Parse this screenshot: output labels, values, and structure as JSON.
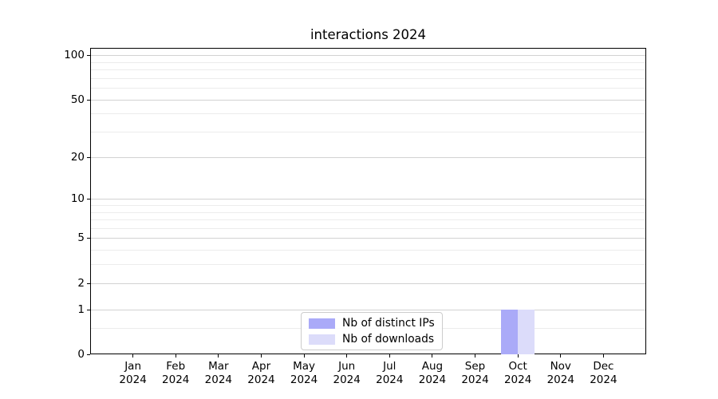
{
  "chart_data": {
    "type": "bar",
    "title": "interactions 2024",
    "x_ticks": [
      {
        "month": "Jan",
        "year": "2024"
      },
      {
        "month": "Feb",
        "year": "2024"
      },
      {
        "month": "Mar",
        "year": "2024"
      },
      {
        "month": "Apr",
        "year": "2024"
      },
      {
        "month": "May",
        "year": "2024"
      },
      {
        "month": "Jun",
        "year": "2024"
      },
      {
        "month": "Jul",
        "year": "2024"
      },
      {
        "month": "Aug",
        "year": "2024"
      },
      {
        "month": "Sep",
        "year": "2024"
      },
      {
        "month": "Oct",
        "year": "2024"
      },
      {
        "month": "Nov",
        "year": "2024"
      },
      {
        "month": "Dec",
        "year": "2024"
      }
    ],
    "series": [
      {
        "name": "Nb of distinct IPs",
        "color": "#aaaaf8",
        "values": [
          0,
          0,
          0,
          0,
          0,
          0,
          0,
          0,
          0,
          1,
          0,
          0
        ]
      },
      {
        "name": "Nb of downloads",
        "color": "#dcdcfa",
        "values": [
          0,
          0,
          0,
          0,
          0,
          0,
          0,
          0,
          0,
          1,
          0,
          0
        ]
      }
    ],
    "y_axis": {
      "scale": "log1p",
      "ticks": [
        0,
        1,
        2,
        5,
        10,
        20,
        50,
        100
      ],
      "minor_gridlines": [
        0.5,
        3,
        4,
        6,
        7,
        8,
        9,
        30,
        40,
        60,
        70,
        80,
        90
      ],
      "min": 0,
      "max": 112
    },
    "grid": "horizontal",
    "legend_position": "bottom-center",
    "colors": {
      "major_grid": "#d2d2d2",
      "minor_grid": "#ececec",
      "spine": "#000000",
      "text": "#000000",
      "background": "#ffffff"
    }
  }
}
